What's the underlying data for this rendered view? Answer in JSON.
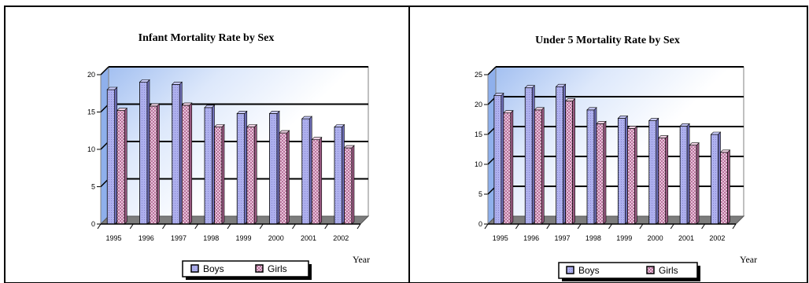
{
  "chart_data": [
    {
      "type": "bar",
      "title": "Infant Mortality Rate by Sex",
      "xlabel": "Year",
      "ylabel": "",
      "categories": [
        "1995",
        "1996",
        "1997",
        "1998",
        "1999",
        "2000",
        "2001",
        "2002"
      ],
      "series": [
        {
          "name": "Boys",
          "values": [
            18,
            19,
            18.7,
            15.6,
            14.8,
            14.8,
            14.1,
            13
          ]
        },
        {
          "name": "Girls",
          "values": [
            15.2,
            15.8,
            15.9,
            13,
            13,
            12.2,
            11.3,
            10.2
          ]
        }
      ],
      "yticks": [
        "0",
        "5",
        "10",
        "15",
        "20"
      ],
      "ylim": [
        0,
        20
      ],
      "legend_position": "bottom",
      "colors": {
        "Boys": "#a9a9e8",
        "Girls": "#dca8c8"
      }
    },
    {
      "type": "bar",
      "title": "Under 5 Mortality Rate by Sex",
      "xlabel": "Year",
      "ylabel": "",
      "categories": [
        "1995",
        "1996",
        "1997",
        "1998",
        "1999",
        "2000",
        "2001",
        "2002"
      ],
      "series": [
        {
          "name": "Boys",
          "values": [
            21.5,
            22.8,
            23,
            19.1,
            17.7,
            17.3,
            16.4,
            15
          ]
        },
        {
          "name": "Girls",
          "values": [
            18.6,
            19.1,
            20.6,
            16.8,
            16,
            14.4,
            13.2,
            12
          ]
        }
      ],
      "yticks": [
        "0",
        "5",
        "10",
        "15",
        "20",
        "25"
      ],
      "ylim": [
        0,
        25
      ],
      "legend_position": "bottom",
      "colors": {
        "Boys": "#a9a9e8",
        "Girls": "#dca8c8"
      }
    }
  ]
}
